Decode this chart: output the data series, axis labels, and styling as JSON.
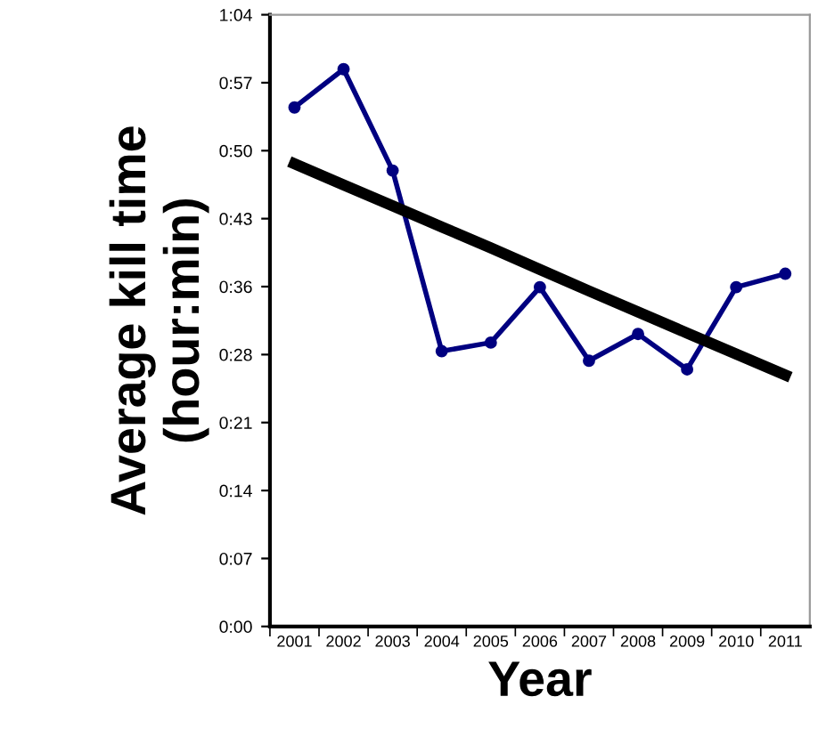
{
  "chart_data": {
    "type": "line",
    "xlabel": "Year",
    "ylabel": "Average kill time\n(hour:min)",
    "categories": [
      "2001",
      "2002",
      "2003",
      "2004",
      "2005",
      "2006",
      "2007",
      "2008",
      "2009",
      "2010",
      "2011"
    ],
    "series": [
      {
        "color": "#000080",
        "marker": "circle",
        "values": [
          54.3,
          58.3,
          47.7,
          28.8,
          29.7,
          35.5,
          27.8,
          30.6,
          26.9,
          35.5,
          36.9
        ]
      },
      {
        "color": "#000000",
        "marker": "none",
        "values": [
          48.4,
          46.2,
          44.0,
          41.8,
          39.6,
          37.35,
          35.1,
          32.9,
          30.7,
          28.5,
          26.3
        ]
      }
    ],
    "ylim": [
      0,
      64
    ],
    "yticks": [
      {
        "value": 0,
        "label": "0:00"
      },
      {
        "value": 7.111,
        "label": "0:07"
      },
      {
        "value": 14.222,
        "label": "0:14"
      },
      {
        "value": 21.333,
        "label": "0:21"
      },
      {
        "value": 28.444,
        "label": "0:28"
      },
      {
        "value": 35.556,
        "label": "0:36"
      },
      {
        "value": 42.667,
        "label": "0:43"
      },
      {
        "value": 49.778,
        "label": "0:50"
      },
      {
        "value": 56.889,
        "label": "0:57"
      },
      {
        "value": 64,
        "label": "1:04"
      }
    ],
    "grid": false,
    "legend": false
  }
}
